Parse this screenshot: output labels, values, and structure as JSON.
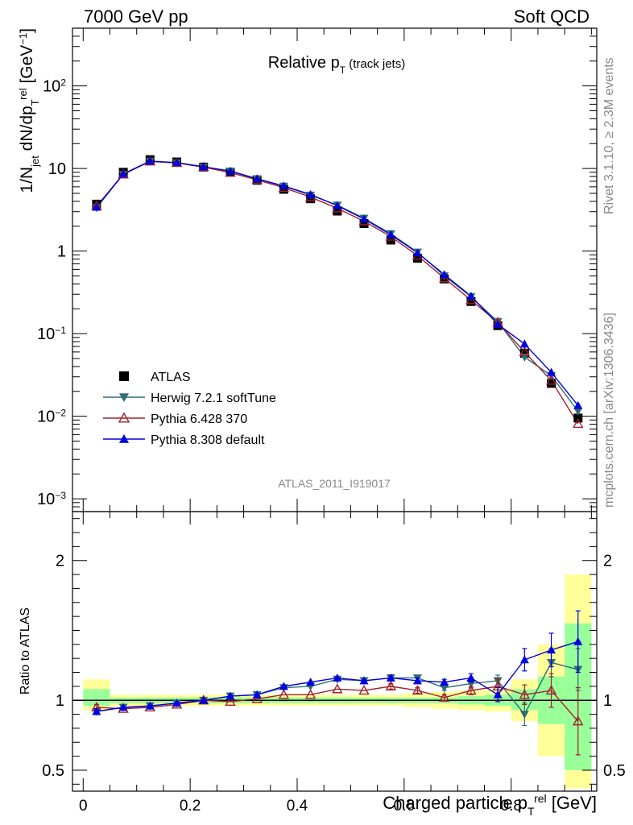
{
  "header": {
    "left": "7000 GeV pp",
    "right": "Soft QCD"
  },
  "side_labels": {
    "rivet": "Rivet 3.1.10, ≥ 2.3M events",
    "mcplots": "mcplots.cern.ch [arXiv:1306.3436]"
  },
  "chart_data": [
    {
      "type": "scatter",
      "panel": "main",
      "title": "Relative p_T (track jets)",
      "ylabel": "1/N_jet dN/dp_T^rel [GeV^-1]",
      "yscale": "log",
      "ylim": [
        0.0007,
        500
      ],
      "xlim": [
        -0.02,
        0.96
      ],
      "x": [
        0.025,
        0.075,
        0.125,
        0.175,
        0.225,
        0.275,
        0.325,
        0.375,
        0.425,
        0.475,
        0.525,
        0.575,
        0.625,
        0.675,
        0.725,
        0.775,
        0.825,
        0.875,
        0.925
      ],
      "ytick_labels": [
        "10^-3",
        "10^-2",
        "10^-1",
        "1",
        "10",
        "10^2"
      ],
      "legend_position": "lower-left",
      "reference_label": "ATLAS_2011_I919017",
      "series": [
        {
          "name": "ATLAS",
          "color": "#000000",
          "marker": "square",
          "values": [
            3.7,
            9.0,
            12.8,
            12.0,
            10.4,
            9.0,
            7.2,
            5.6,
            4.3,
            3.05,
            2.15,
            1.36,
            0.82,
            0.46,
            0.245,
            0.125,
            0.058,
            0.025,
            0.0095
          ]
        },
        {
          "name": "Herwig 7.2.1 softTune",
          "color": "#2f6e73",
          "marker": "triangle-down",
          "values": [
            3.35,
            8.5,
            12.2,
            11.7,
            10.4,
            9.3,
            7.5,
            6.1,
            4.75,
            3.6,
            2.5,
            1.62,
            0.97,
            0.5,
            0.28,
            0.14,
            0.052,
            0.031,
            0.0115
          ]
        },
        {
          "name": "Pythia 6.428 370",
          "color": "#a31f2b",
          "marker": "triangle-open",
          "values": [
            3.5,
            8.5,
            12.2,
            11.7,
            10.4,
            8.9,
            7.3,
            5.85,
            4.5,
            3.3,
            2.3,
            1.5,
            0.88,
            0.47,
            0.255,
            0.137,
            0.06,
            0.027,
            0.0081
          ]
        },
        {
          "name": "Pythia 8.308 default",
          "color": "#0000e0",
          "marker": "triangle-up",
          "values": [
            3.4,
            8.6,
            12.3,
            11.8,
            10.5,
            9.3,
            7.5,
            6.15,
            4.85,
            3.55,
            2.45,
            1.58,
            0.95,
            0.52,
            0.285,
            0.13,
            0.075,
            0.034,
            0.0135
          ]
        }
      ]
    },
    {
      "type": "scatter",
      "panel": "ratio",
      "ylabel": "Ratio to ATLAS",
      "xlabel": "Charged particle p_T^rel [GeV]",
      "ylim": [
        0.35,
        2.35
      ],
      "xlim": [
        -0.02,
        0.96
      ],
      "x": [
        0.025,
        0.075,
        0.125,
        0.175,
        0.225,
        0.275,
        0.325,
        0.375,
        0.425,
        0.475,
        0.525,
        0.575,
        0.625,
        0.675,
        0.725,
        0.775,
        0.825,
        0.875,
        0.925
      ],
      "xtick_labels": [
        "0",
        "0.2",
        "0.4",
        "0.6",
        "0.8"
      ],
      "ytick_labels": [
        "0.5",
        "1",
        "2"
      ],
      "band_bins": [
        [
          0,
          0.05
        ],
        [
          0.05,
          0.1
        ],
        [
          0.1,
          0.15
        ],
        [
          0.15,
          0.2
        ],
        [
          0.2,
          0.25
        ],
        [
          0.25,
          0.3
        ],
        [
          0.3,
          0.35
        ],
        [
          0.35,
          0.4
        ],
        [
          0.4,
          0.45
        ],
        [
          0.45,
          0.5
        ],
        [
          0.5,
          0.55
        ],
        [
          0.55,
          0.6
        ],
        [
          0.6,
          0.65
        ],
        [
          0.65,
          0.7
        ],
        [
          0.7,
          0.75
        ],
        [
          0.75,
          0.8
        ],
        [
          0.8,
          0.85
        ],
        [
          0.85,
          0.9
        ],
        [
          0.9,
          0.95
        ]
      ],
      "stat_band": [
        [
          0.96,
          1.08
        ],
        [
          0.98,
          1.02
        ],
        [
          0.98,
          1.02
        ],
        [
          0.98,
          1.02
        ],
        [
          0.98,
          1.02
        ],
        [
          0.98,
          1.02
        ],
        [
          0.98,
          1.02
        ],
        [
          0.98,
          1.02
        ],
        [
          0.98,
          1.02
        ],
        [
          0.98,
          1.02
        ],
        [
          0.98,
          1.02
        ],
        [
          0.98,
          1.02
        ],
        [
          0.98,
          1.02
        ],
        [
          0.98,
          1.02
        ],
        [
          0.97,
          1.03
        ],
        [
          0.96,
          1.04
        ],
        [
          0.93,
          1.08
        ],
        [
          0.83,
          1.17
        ],
        [
          0.5,
          1.55
        ]
      ],
      "syst_band": [
        [
          0.93,
          1.15
        ],
        [
          0.96,
          1.04
        ],
        [
          0.96,
          1.04
        ],
        [
          0.96,
          1.04
        ],
        [
          0.96,
          1.04
        ],
        [
          0.96,
          1.04
        ],
        [
          0.96,
          1.04
        ],
        [
          0.96,
          1.04
        ],
        [
          0.96,
          1.04
        ],
        [
          0.96,
          1.04
        ],
        [
          0.96,
          1.04
        ],
        [
          0.96,
          1.04
        ],
        [
          0.95,
          1.05
        ],
        [
          0.94,
          1.06
        ],
        [
          0.93,
          1.07
        ],
        [
          0.92,
          1.08
        ],
        [
          0.85,
          1.15
        ],
        [
          0.6,
          1.4
        ],
        [
          0.37,
          1.9
        ]
      ],
      "series": [
        {
          "name": "Herwig 7.2.1 softTune",
          "color": "#2f6e73",
          "values": [
            0.92,
            0.95,
            0.96,
            0.98,
            1.0,
            1.03,
            1.04,
            1.09,
            1.1,
            1.15,
            1.14,
            1.16,
            1.16,
            1.09,
            1.12,
            1.14,
            0.9,
            1.27,
            1.22
          ],
          "errors": [
            0.02,
            0.01,
            0.01,
            0.01,
            0.01,
            0.01,
            0.01,
            0.01,
            0.01,
            0.01,
            0.01,
            0.02,
            0.02,
            0.02,
            0.03,
            0.04,
            0.08,
            0.1,
            0.15
          ]
        },
        {
          "name": "Pythia 6.428 370",
          "color": "#a31f2b",
          "values": [
            0.95,
            0.94,
            0.95,
            0.97,
            1.0,
            0.99,
            1.01,
            1.04,
            1.04,
            1.08,
            1.07,
            1.1,
            1.07,
            1.02,
            1.07,
            1.1,
            1.04,
            1.07,
            0.85
          ],
          "errors": [
            0.02,
            0.01,
            0.01,
            0.01,
            0.01,
            0.01,
            0.01,
            0.01,
            0.01,
            0.01,
            0.01,
            0.02,
            0.02,
            0.02,
            0.03,
            0.05,
            0.07,
            0.12,
            0.24
          ]
        },
        {
          "name": "Pythia 8.308 default",
          "color": "#0000e0",
          "values": [
            0.92,
            0.95,
            0.96,
            0.98,
            1.0,
            1.03,
            1.04,
            1.1,
            1.13,
            1.16,
            1.14,
            1.16,
            1.14,
            1.13,
            1.16,
            1.04,
            1.29,
            1.36,
            1.42
          ],
          "errors": [
            0.02,
            0.01,
            0.01,
            0.01,
            0.01,
            0.01,
            0.01,
            0.01,
            0.01,
            0.01,
            0.01,
            0.02,
            0.02,
            0.02,
            0.03,
            0.05,
            0.08,
            0.12,
            0.22
          ]
        }
      ]
    }
  ]
}
